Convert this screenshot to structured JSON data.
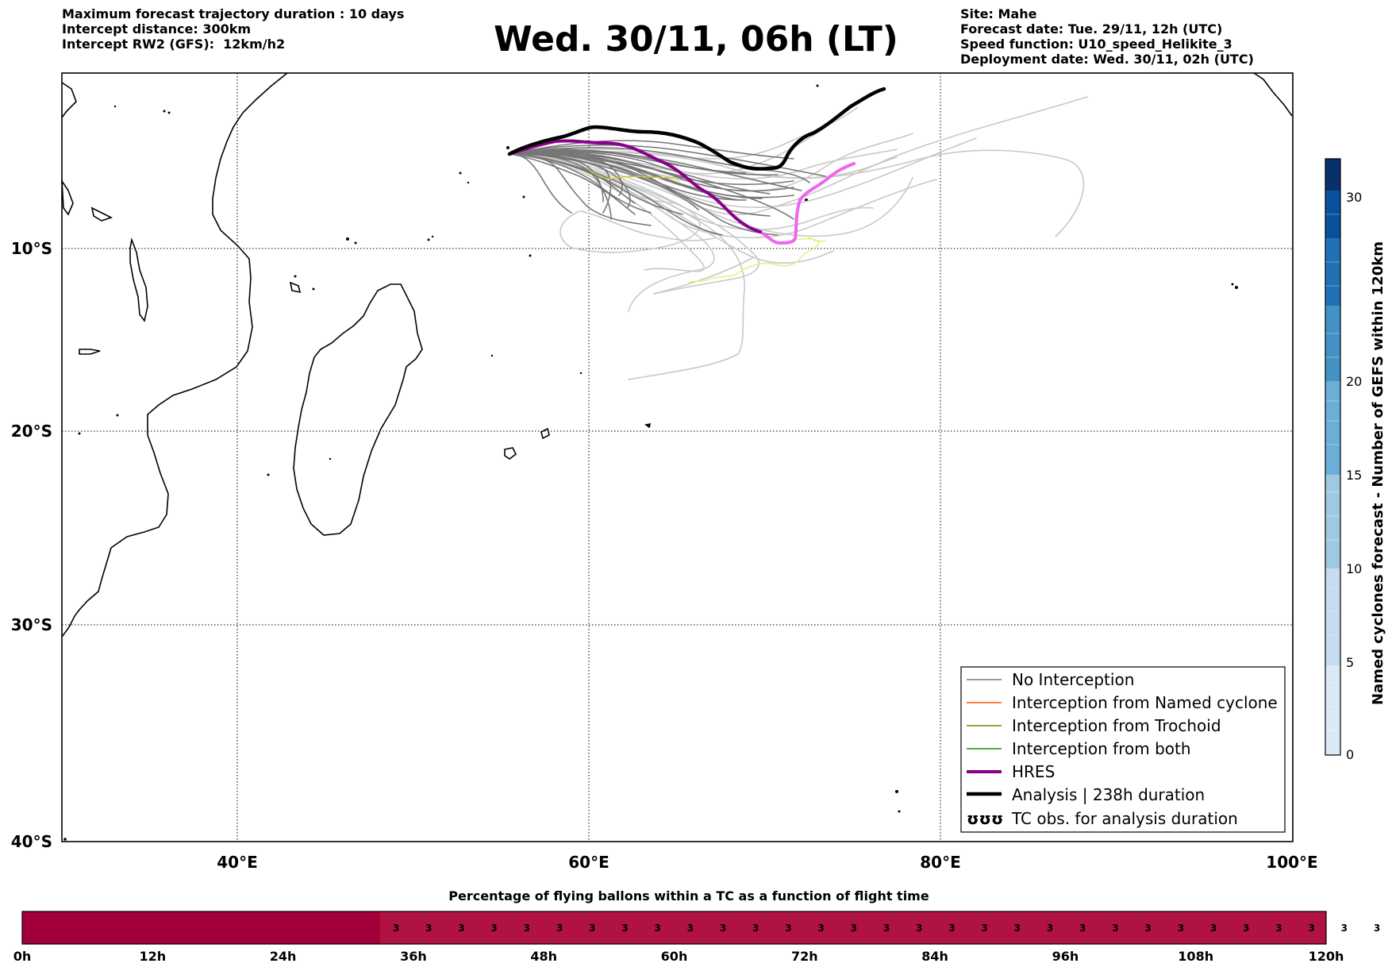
{
  "title": "Wed. 30/11, 06h (LT)",
  "header_left": [
    "Maximum forecast trajectory duration : 10 days",
    "Intercept distance: 300km",
    "Intercept RW2 (GFS):  12km/h2"
  ],
  "header_right": [
    "Site: Mahe",
    "Forecast date: Tue. 29/11, 12h (UTC)",
    "Speed function: U10_speed_Helikite_3",
    "Deployment date: Wed. 30/11, 02h (UTC)"
  ],
  "map": {
    "lon_range": [
      30,
      100
    ],
    "lat_range": [
      -40,
      2
    ],
    "lon_ticks": [
      {
        "value": 40,
        "label": "40°E"
      },
      {
        "value": 60,
        "label": "60°E"
      },
      {
        "value": 80,
        "label": "80°E"
      },
      {
        "value": 100,
        "label": "100°E"
      }
    ],
    "lat_ticks": [
      {
        "value": -10,
        "label": "10°S"
      },
      {
        "value": -20,
        "label": "20°S"
      },
      {
        "value": -30,
        "label": "30°S"
      },
      {
        "value": -40,
        "label": "40°S"
      }
    ],
    "colors": {
      "no_interception": "#777777",
      "ensemble_light": "#c8c8c8",
      "named_cyclone": "#ff5500",
      "trochoid": "#808000",
      "trochoid_light": "#ecec8a",
      "both": "#119911",
      "hres": "#8b008b",
      "hres_light": "#ee66ee",
      "analysis": "#000000"
    }
  },
  "legend": {
    "items": [
      {
        "label": "No Interception",
        "style": "no_interception"
      },
      {
        "label": "Interception from Named cyclone",
        "style": "named_cyclone"
      },
      {
        "label": "Interception from Trochoid",
        "style": "trochoid"
      },
      {
        "label": "Interception from both",
        "style": "both"
      },
      {
        "label": "HRES",
        "style": "hres"
      },
      {
        "label": "Analysis | 238h duration",
        "style": "analysis"
      },
      {
        "label": "TC obs. for analysis duration",
        "style": "tc_obs"
      }
    ],
    "tc_symbol": "ʊʊʊ"
  },
  "colorbar": {
    "label": "Named cyclones forecast - Number of GEFS within 120km",
    "ticks": [
      "0",
      "5",
      "10",
      "15",
      "20",
      "30"
    ],
    "colors": [
      "#dbe9f6",
      "#c6dbef",
      "#9ecae1",
      "#6baed6",
      "#4292c6",
      "#2171b5",
      "#08519c",
      "#08306b"
    ]
  },
  "percentage_bar": {
    "title": "Percentage of flying ballons within a TC as a function of flight time",
    "tick_labels": [
      "0h",
      "12h",
      "24h",
      "36h",
      "48h",
      "60h",
      "72h",
      "84h",
      "96h",
      "108h",
      "120h"
    ],
    "cell_values": [
      "3",
      "3",
      "3",
      "3",
      "3",
      "3",
      "3",
      "3",
      "3",
      "3",
      "3",
      "3",
      "3",
      "3",
      "3",
      "3",
      "3",
      "3",
      "3",
      "3",
      "3",
      "3",
      "3",
      "3",
      "3",
      "3",
      "3",
      "3",
      "3",
      "3",
      "3",
      "3",
      "3"
    ],
    "colors": {
      "empty": "#a3003b",
      "filled": "#b01242"
    }
  }
}
